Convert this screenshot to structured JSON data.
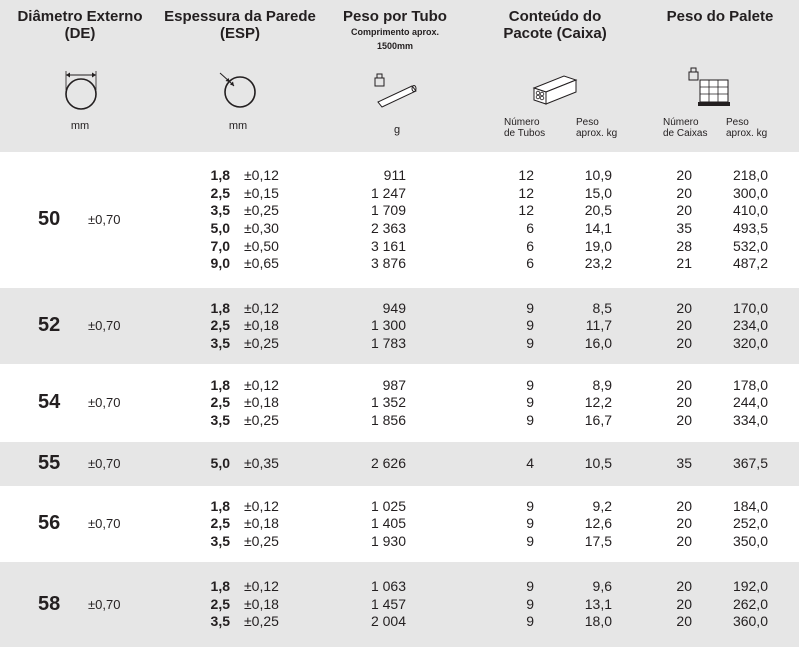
{
  "header": {
    "col1_title": "Diâmetro Externo",
    "col1_sub": "(DE)",
    "col1_unit": "mm",
    "col2_title": "Espessura da Parede",
    "col2_sub": "(ESP)",
    "col2_unit": "mm",
    "col3_title": "Peso por Tubo",
    "col3_sub1": "Comprimento aprox.",
    "col3_sub2": "1500mm",
    "col3_unit": "g",
    "col4_title1": "Conteúdo do",
    "col4_title2": "Pacote (Caixa)",
    "col4_sub_a1": "Número",
    "col4_sub_a2": "de Tubos",
    "col4_sub_b1": "Peso",
    "col4_sub_b2": "aprox. kg",
    "col5_title": "Peso do Palete",
    "col5_sub_a1": "Número",
    "col5_sub_a2": "de Caixas",
    "col5_sub_b1": "Peso",
    "col5_sub_b2": "aprox. kg"
  },
  "icons": {
    "col1": "outer-diameter-icon",
    "col2": "wall-thickness-icon",
    "col3": "tube-weight-icon",
    "col4": "box-of-tubes-icon",
    "col5": "pallet-icon"
  },
  "groups": [
    {
      "de": "50",
      "tol": "±0,70",
      "rows": [
        {
          "esp": "1,8",
          "tol": "±0,12",
          "peso": "911",
          "ntubos": "12",
          "pkg": "10,9",
          "ncaixas": "20",
          "ppal": "218,0"
        },
        {
          "esp": "2,5",
          "tol": "±0,15",
          "peso": "1 247",
          "ntubos": "12",
          "pkg": "15,0",
          "ncaixas": "20",
          "ppal": "300,0"
        },
        {
          "esp": "3,5",
          "tol": "±0,25",
          "peso": "1 709",
          "ntubos": "12",
          "pkg": "20,5",
          "ncaixas": "20",
          "ppal": "410,0"
        },
        {
          "esp": "5,0",
          "tol": "±0,30",
          "peso": "2 363",
          "ntubos": "6",
          "pkg": "14,1",
          "ncaixas": "35",
          "ppal": "493,5"
        },
        {
          "esp": "7,0",
          "tol": "±0,50",
          "peso": "3 161",
          "ntubos": "6",
          "pkg": "19,0",
          "ncaixas": "28",
          "ppal": "532,0"
        },
        {
          "esp": "9,0",
          "tol": "±0,65",
          "peso": "3 876",
          "ntubos": "6",
          "pkg": "23,2",
          "ncaixas": "21",
          "ppal": "487,2"
        }
      ]
    },
    {
      "de": "52",
      "tol": "±0,70",
      "rows": [
        {
          "esp": "1,8",
          "tol": "±0,12",
          "peso": "949",
          "ntubos": "9",
          "pkg": "8,5",
          "ncaixas": "20",
          "ppal": "170,0"
        },
        {
          "esp": "2,5",
          "tol": "±0,18",
          "peso": "1 300",
          "ntubos": "9",
          "pkg": "11,7",
          "ncaixas": "20",
          "ppal": "234,0"
        },
        {
          "esp": "3,5",
          "tol": "±0,25",
          "peso": "1 783",
          "ntubos": "9",
          "pkg": "16,0",
          "ncaixas": "20",
          "ppal": "320,0"
        }
      ]
    },
    {
      "de": "54",
      "tol": "±0,70",
      "rows": [
        {
          "esp": "1,8",
          "tol": "±0,12",
          "peso": "987",
          "ntubos": "9",
          "pkg": "8,9",
          "ncaixas": "20",
          "ppal": "178,0"
        },
        {
          "esp": "2,5",
          "tol": "±0,18",
          "peso": "1 352",
          "ntubos": "9",
          "pkg": "12,2",
          "ncaixas": "20",
          "ppal": "244,0"
        },
        {
          "esp": "3,5",
          "tol": "±0,25",
          "peso": "1 856",
          "ntubos": "9",
          "pkg": "16,7",
          "ncaixas": "20",
          "ppal": "334,0"
        }
      ]
    },
    {
      "de": "55",
      "tol": "±0,70",
      "rows": [
        {
          "esp": "5,0",
          "tol": "±0,35",
          "peso": "2 626",
          "ntubos": "4",
          "pkg": "10,5",
          "ncaixas": "35",
          "ppal": "367,5"
        }
      ]
    },
    {
      "de": "56",
      "tol": "±0,70",
      "rows": [
        {
          "esp": "1,8",
          "tol": "±0,12",
          "peso": "1 025",
          "ntubos": "9",
          "pkg": "9,2",
          "ncaixas": "20",
          "ppal": "184,0"
        },
        {
          "esp": "2,5",
          "tol": "±0,18",
          "peso": "1 405",
          "ntubos": "9",
          "pkg": "12,6",
          "ncaixas": "20",
          "ppal": "252,0"
        },
        {
          "esp": "3,5",
          "tol": "±0,25",
          "peso": "1 930",
          "ntubos": "9",
          "pkg": "17,5",
          "ncaixas": "20",
          "ppal": "350,0"
        }
      ]
    },
    {
      "de": "58",
      "tol": "±0,70",
      "rows": [
        {
          "esp": "1,8",
          "tol": "±0,12",
          "peso": "1 063",
          "ntubos": "9",
          "pkg": "9,6",
          "ncaixas": "20",
          "ppal": "192,0"
        },
        {
          "esp": "2,5",
          "tol": "±0,18",
          "peso": "1 457",
          "ntubos": "9",
          "pkg": "13,1",
          "ncaixas": "20",
          "ppal": "262,0"
        },
        {
          "esp": "3,5",
          "tol": "±0,25",
          "peso": "2 004",
          "ntubos": "9",
          "pkg": "18,0",
          "ncaixas": "20",
          "ppal": "360,0"
        }
      ]
    }
  ]
}
